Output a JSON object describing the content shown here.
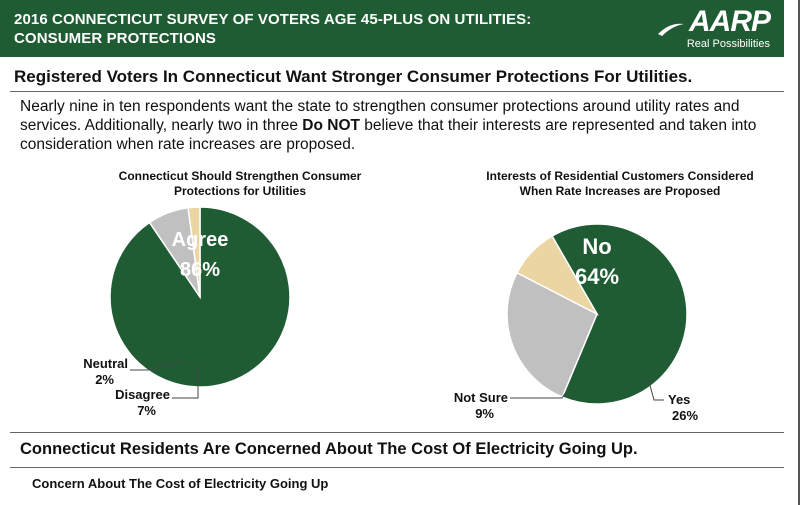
{
  "header": {
    "title_line1": "2016 CONNECTICUT SURVEY OF VOTERS AGE 45-PLUS ON UTILITIES:",
    "title_line2": "CONSUMER PROTECTIONS",
    "logo_text": "AARP",
    "logo_tagline": "Real Possibilities",
    "bg_color": "#1f5c34"
  },
  "headline": "Registered Voters In Connecticut Want Stronger Consumer Protections For Utilities.",
  "intro": {
    "part1": "Nearly nine in ten respondents want the state to strengthen consumer protections around utility rates and services. Additionally, nearly two in three ",
    "emphasis": "Do NOT",
    "part2": " believe that their interests are represented and taken into consideration when rate increases are proposed."
  },
  "section2_heading": "Connecticut Residents Are Concerned About The Cost Of Electricity Going Up.",
  "section3_heading": "Concern About The Cost of Electricity Going Up",
  "chart_data": [
    {
      "type": "pie",
      "title_line1": "Connecticut Should Strengthen Consumer",
      "title_line2": "Protections for Utilities",
      "slices": [
        {
          "label": "Agree",
          "value": 86,
          "display": "86%",
          "color": "#1f5c34"
        },
        {
          "label": "Disagree",
          "value": 7,
          "display": "7%",
          "color": "#c0c0c0"
        },
        {
          "label": "Neutral",
          "value": 2,
          "display": "2%",
          "color": "#ead5a3"
        }
      ],
      "start_angle_deg": 0
    },
    {
      "type": "pie",
      "title_line1": "Interests of Residential Customers Considered",
      "title_line2": "When Rate Increases are Proposed",
      "slices": [
        {
          "label": "No",
          "value": 64,
          "display": "64%",
          "color": "#1f5c34"
        },
        {
          "label": "Yes",
          "value": 26,
          "display": "26%",
          "color": "#c0c0c0"
        },
        {
          "label": "Not Sure",
          "value": 9,
          "display": "9%",
          "color": "#ead5a3"
        }
      ],
      "start_angle_deg": -30
    }
  ]
}
